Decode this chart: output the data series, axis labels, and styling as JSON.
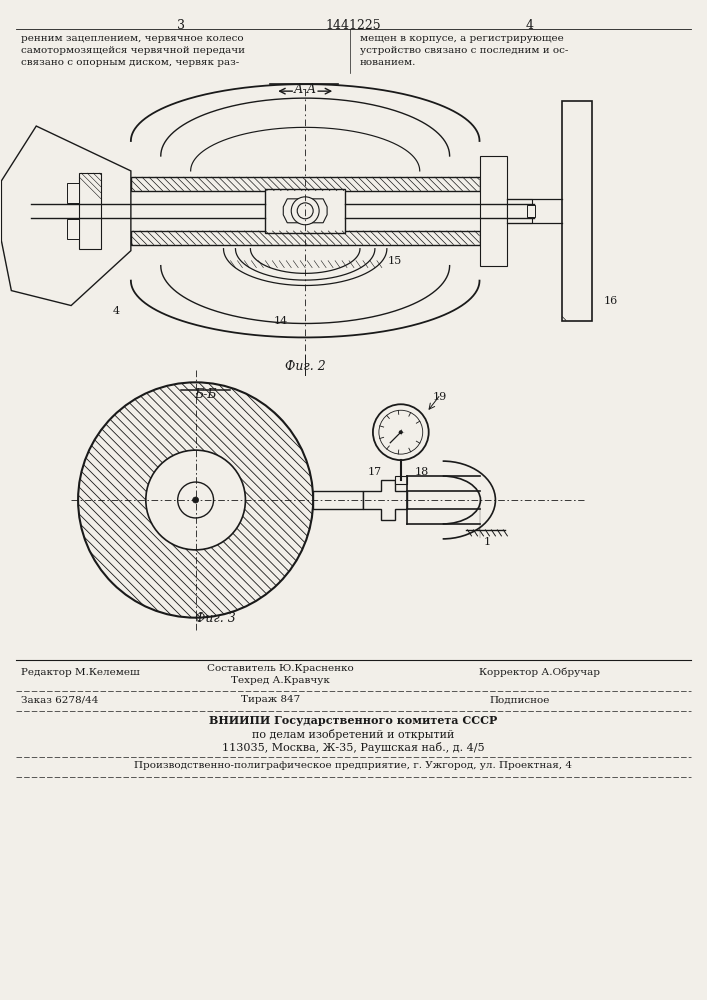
{
  "bg_color": "#f2efe9",
  "line_color": "#1a1a1a",
  "text_color": "#1a1a1a",
  "page_num_left": "3",
  "page_num_center": "1441225",
  "page_num_right": "4",
  "top_left_line1": "ренним зацеплением, червячное колесо",
  "top_left_line2": "самотормозящейся червячной передачи",
  "top_left_line3": "связано с опорным диском, червяк раз-",
  "top_right_line1": "мещен в корпусе, а регистрирующее",
  "top_right_line2": "устройство связано с последним и ос-",
  "top_right_line3": "нованием.",
  "fig2_caption": "Фиг. 2",
  "fig3_caption": "Фиг. 3",
  "footer_editor": "Редактор М.Келемеш",
  "footer_compiler": "Составитель Ю.Красненко",
  "footer_techred": "Техред А.Кравчук",
  "footer_corrector": "Корректор А.Обручар",
  "footer_order": "Заказ 6278/44",
  "footer_tirazh": "Тираж 847",
  "footer_podpisnoe": "Подписное",
  "footer_vnipi": "ВНИИПИ Государственного комитета СССР",
  "footer_po_delam": "по делам изобретений и открытий",
  "footer_address": "113035, Москва, Ж-35, Раушская наб., д. 4/5",
  "footer_factory": "Производственно-полиграфическое предприятие, г. Ужгород, ул. Проектная, 4"
}
